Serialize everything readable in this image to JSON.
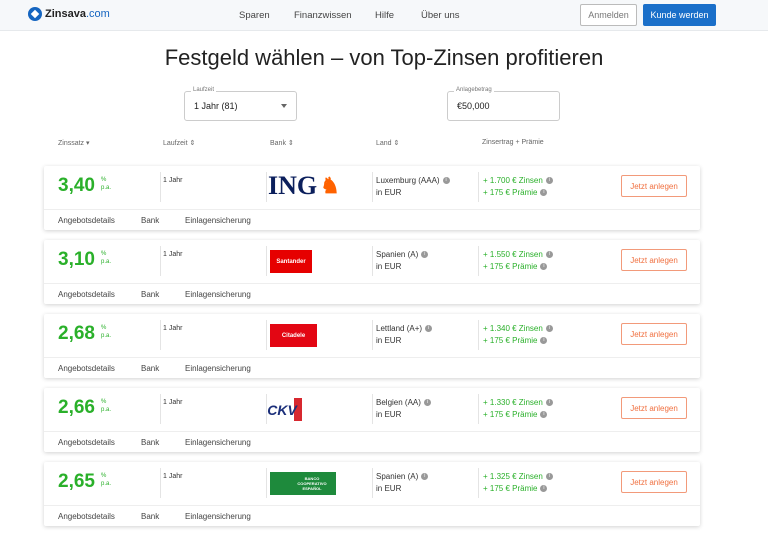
{
  "header": {
    "brand": "Zinsava",
    "brand_domain": ".com",
    "nav": [
      "Sparen",
      "Finanzwissen",
      "Hilfe",
      "Über uns"
    ],
    "login": "Anmelden",
    "register": "Kunde werden"
  },
  "title": "Festgeld wählen – von Top-Zinsen profitieren",
  "filters": {
    "term_label": "Laufzeit",
    "term_value": "1 Jahr (81)",
    "amount_label": "Anlagebetrag",
    "amount_value": "€50,000"
  },
  "columns": [
    "Zinssatz",
    "Laufzeit",
    "Bank",
    "Land",
    "Zinsertrag + Prämie"
  ],
  "offers": [
    {
      "rate": "3,40",
      "term": "1 Jahr",
      "bank": "ING",
      "country": "Luxemburg (AAA)",
      "currency": "in EUR",
      "interest": "+ 1.700 € Zinsen",
      "bonus": "+ 175 € Prämie",
      "logo_color": "#ff6200"
    },
    {
      "rate": "3,10",
      "term": "1 Jahr",
      "bank": "Santander",
      "country": "Spanien (A)",
      "currency": "in EUR",
      "interest": "+ 1.550 € Zinsen",
      "bonus": "+ 175 € Prämie",
      "logo_color": "#e60000"
    },
    {
      "rate": "2,68",
      "term": "1 Jahr",
      "bank": "Citadele",
      "country": "Lettland (A+)",
      "currency": "in EUR",
      "interest": "+ 1.340 € Zinsen",
      "bonus": "+ 175 € Prämie",
      "logo_color": "#e30613"
    },
    {
      "rate": "2,66",
      "term": "1 Jahr",
      "bank": "CKV",
      "country": "Belgien (AA)",
      "currency": "in EUR",
      "interest": "+ 1.330 € Zinsen",
      "bonus": "+ 175 € Prämie",
      "logo_color": "#d7282f"
    },
    {
      "rate": "2,65",
      "term": "1 Jahr",
      "bank": "BANCO COOPERATIVO ESPAÑOL",
      "country": "Spanien (A)",
      "currency": "in EUR",
      "interest": "+ 1.325 € Zinsen",
      "bonus": "+ 175 € Prämie",
      "logo_color": "#1e8a3c"
    }
  ],
  "labels": {
    "percent": "%",
    "pa": "p.a.",
    "cta": "Jetzt anlegen",
    "tabs": [
      "Angebotsdetails",
      "Bank",
      "Einlagensicherung"
    ],
    "info": "i"
  }
}
